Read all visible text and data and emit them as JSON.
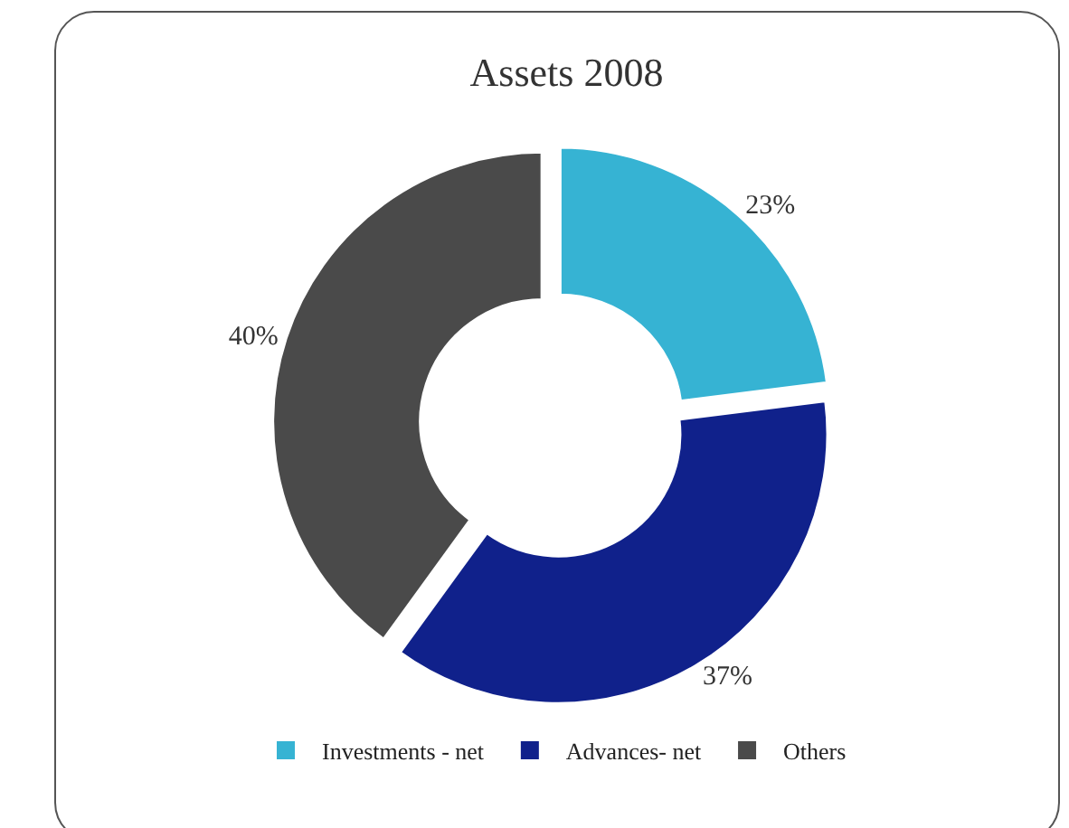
{
  "chart_data": {
    "type": "donut",
    "title": "Assets 2008",
    "categories": [
      "Investments - net",
      "Advances- net",
      "Others"
    ],
    "values": [
      23,
      37,
      40
    ],
    "colors": [
      "#36b3d3",
      "#10218b",
      "#4a4a4a"
    ],
    "value_labels": [
      "23%",
      "37%",
      "40%"
    ],
    "legend": "bottom"
  }
}
